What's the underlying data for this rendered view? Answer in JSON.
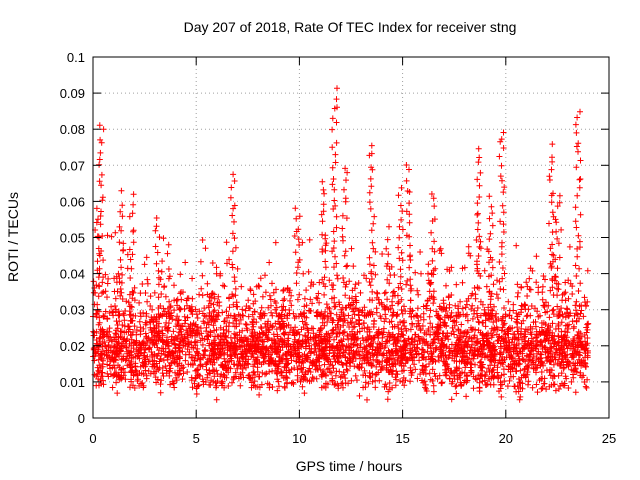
{
  "chart_data": {
    "type": "scatter",
    "title": "Day 207 of 2018, Rate Of TEC Index for receiver stng",
    "xlabel": "GPS time / hours",
    "ylabel": "ROTI / TECUs",
    "xlim": [
      0,
      25
    ],
    "ylim": [
      0,
      0.1
    ],
    "xticks": [
      0,
      5,
      10,
      15,
      20,
      25
    ],
    "xtick_labels": [
      "0",
      "5",
      "10",
      "15",
      "20",
      "25"
    ],
    "yticks": [
      0,
      0.01,
      0.02,
      0.03,
      0.04,
      0.05,
      0.06,
      0.07,
      0.08,
      0.09,
      0.1
    ],
    "ytick_labels": [
      "0",
      "0.01",
      "0.02",
      "0.03",
      "0.04",
      "0.05",
      "0.06",
      "0.07",
      "0.08",
      "0.09",
      "0.1"
    ],
    "grid": true,
    "marker": "+",
    "series_color": "#ff0000",
    "x_range_data": [
      0,
      24
    ],
    "dense_band": {
      "low": 0.008,
      "high": 0.035,
      "center": 0.019
    },
    "peaks": [
      {
        "x": 0.4,
        "y": 0.082
      },
      {
        "x": 0.2,
        "y": 0.058
      },
      {
        "x": 1.4,
        "y": 0.062
      },
      {
        "x": 1.9,
        "y": 0.061
      },
      {
        "x": 3.1,
        "y": 0.056
      },
      {
        "x": 6.8,
        "y": 0.068
      },
      {
        "x": 9.9,
        "y": 0.059
      },
      {
        "x": 11.2,
        "y": 0.066
      },
      {
        "x": 11.7,
        "y": 0.091
      },
      {
        "x": 12.2,
        "y": 0.069
      },
      {
        "x": 13.5,
        "y": 0.076
      },
      {
        "x": 14.3,
        "y": 0.052
      },
      {
        "x": 14.9,
        "y": 0.064
      },
      {
        "x": 15.3,
        "y": 0.07
      },
      {
        "x": 16.5,
        "y": 0.062
      },
      {
        "x": 18.7,
        "y": 0.074
      },
      {
        "x": 19.3,
        "y": 0.061
      },
      {
        "x": 19.8,
        "y": 0.08
      },
      {
        "x": 22.2,
        "y": 0.075
      },
      {
        "x": 22.5,
        "y": 0.062
      },
      {
        "x": 23.5,
        "y": 0.085
      }
    ]
  }
}
